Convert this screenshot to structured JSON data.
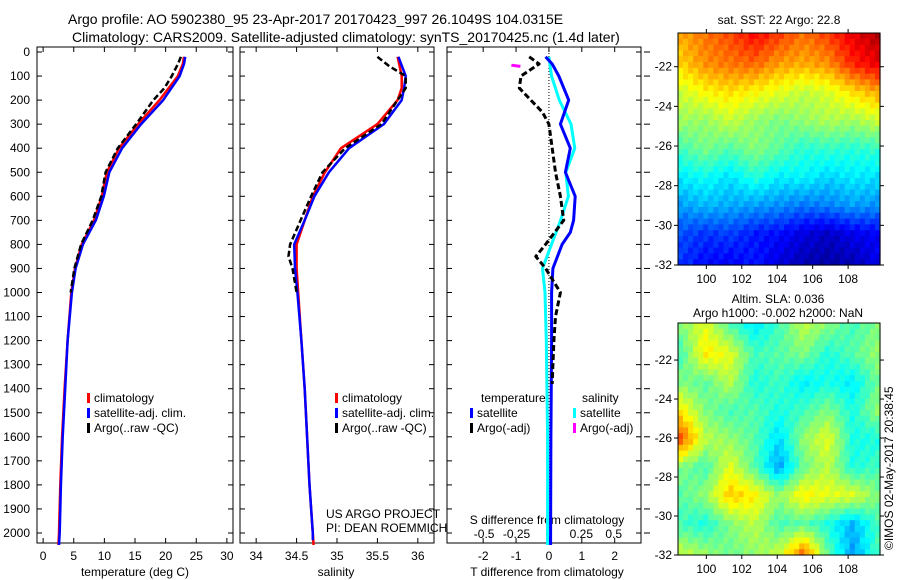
{
  "title_line1": "Argo profile: AO 5902380_95 23-Apr-2017 20170423_997 26.1049S 104.0315E",
  "title_line2": "Climatology: CARS2009. Satellite-adjusted climatology: synTS_20170425.nc (1.4d later)",
  "colors": {
    "climatology": "#ff0000",
    "satellite": "#0000ff",
    "argo": "#000000",
    "s_satellite": "#00ffff",
    "s_argo": "#ff00ff"
  },
  "chart_data": [
    {
      "type": "line",
      "xlabel": "temperature (deg C)",
      "ylabel": "",
      "xlim": [
        -1,
        31
      ],
      "ylim": [
        2050,
        0
      ],
      "xticks": [
        "0",
        "5",
        "10",
        "15",
        "20",
        "25",
        "30"
      ],
      "yticks": [
        "0",
        "100",
        "200",
        "300",
        "400",
        "500",
        "600",
        "700",
        "800",
        "900",
        "1000",
        "1100",
        "1200",
        "1300",
        "1400",
        "1500",
        "1600",
        "1700",
        "1800",
        "1900",
        "2000"
      ],
      "legend": [
        "climatology",
        "satellite-adj. clim.",
        "Argo(..raw -QC)"
      ],
      "series": [
        {
          "name": "climatology",
          "depth": [
            20,
            50,
            100,
            200,
            300,
            400,
            500,
            600,
            700,
            800,
            900,
            1000,
            1200,
            1400,
            1600,
            1800,
            2000,
            2050
          ],
          "values": [
            23,
            22.8,
            22,
            19,
            15.5,
            12.4,
            10.4,
            9.6,
            8.3,
            6.3,
            5.2,
            4.6,
            4,
            3.5,
            3.1,
            2.8,
            2.6,
            2.5
          ]
        },
        {
          "name": "satellite-adj. clim.",
          "depth": [
            20,
            50,
            100,
            200,
            300,
            400,
            500,
            600,
            700,
            800,
            900,
            1000,
            1200,
            1400,
            1600,
            1800,
            2000,
            2050
          ],
          "values": [
            23.2,
            23,
            22.3,
            19.6,
            16,
            12.9,
            10.8,
            9.9,
            8.6,
            6.5,
            5.3,
            4.7,
            4,
            3.6,
            3.2,
            2.9,
            2.7,
            2.6
          ]
        },
        {
          "name": "Argo(..raw -QC)",
          "depth": [
            20,
            50,
            100,
            150,
            200,
            300,
            400,
            500,
            600,
            700,
            800,
            900,
            1000
          ],
          "values": [
            22.5,
            22,
            21,
            19.8,
            18,
            15.2,
            12.2,
            10.2,
            9.5,
            8.1,
            6.2,
            5.1,
            4.5
          ]
        }
      ]
    },
    {
      "type": "line",
      "xlabel": "salinity",
      "xlim": [
        33.8,
        36.2
      ],
      "ylim": [
        2050,
        0
      ],
      "xticks": [
        "34",
        "34.5",
        "35",
        "35.5",
        "36"
      ],
      "legend": [
        "climatology",
        "satellite-adj. clim.",
        "Argo(..raw -QC)"
      ],
      "annotations": [
        "US ARGO PROJECT",
        "PI: DEAN ROEMMICH"
      ],
      "series": [
        {
          "name": "climatology",
          "depth": [
            20,
            100,
            150,
            200,
            300,
            400,
            500,
            600,
            700,
            800,
            900,
            1000,
            1200,
            1400,
            1600,
            1800,
            2000,
            2050
          ],
          "values": [
            35.75,
            35.8,
            35.8,
            35.75,
            35.5,
            35.05,
            34.85,
            34.7,
            34.6,
            34.5,
            34.5,
            34.52,
            34.56,
            34.6,
            34.63,
            34.66,
            34.7,
            34.71
          ]
        },
        {
          "name": "satellite-adj. clim.",
          "depth": [
            20,
            100,
            150,
            200,
            300,
            400,
            500,
            600,
            700,
            800,
            900,
            1000,
            1200,
            1400,
            1600,
            1800,
            2000,
            2030
          ],
          "values": [
            35.76,
            35.85,
            35.83,
            35.8,
            35.58,
            35.15,
            34.9,
            34.72,
            34.6,
            34.47,
            34.48,
            34.51,
            34.56,
            34.6,
            34.63,
            34.66,
            34.7,
            34.7
          ]
        },
        {
          "name": "Argo(..raw -QC)",
          "depth": [
            20,
            60,
            100,
            150,
            200,
            300,
            400,
            500,
            600,
            700,
            800,
            850,
            900,
            1000
          ],
          "values": [
            35.5,
            35.65,
            35.85,
            35.85,
            35.75,
            35.55,
            35.1,
            34.82,
            34.68,
            34.55,
            34.42,
            34.4,
            34.45,
            34.5
          ]
        }
      ]
    },
    {
      "type": "line",
      "xlabel": "T difference from climatology",
      "xlabel2": "S difference from climatology",
      "xlim": [
        -3.1,
        2.8
      ],
      "xticks": [
        "-2",
        "-1",
        "0",
        "1",
        "2"
      ],
      "xticks2": [
        "-0.5",
        "-0.25",
        "0",
        "0.25",
        "0.5"
      ],
      "legend_t_title": "temperature",
      "legend_s_title": "salinity",
      "legend": [
        "satellite",
        "Argo(-adj)",
        "satellite",
        "Argo(-adj)"
      ],
      "series": [
        {
          "name": "T satellite",
          "depth": [
            20,
            50,
            100,
            200,
            300,
            400,
            500,
            600,
            700,
            750,
            800,
            900,
            1000,
            1200,
            1600,
            2000,
            2050
          ],
          "values": [
            -0.1,
            0.1,
            0.3,
            0.6,
            0.35,
            0.65,
            0.5,
            0.8,
            0.75,
            0.65,
            0.4,
            0.12,
            0.08,
            0.08,
            0.06,
            0.05,
            0.05
          ]
        },
        {
          "name": "T Argo(-adj)",
          "depth": [
            20,
            50,
            100,
            150,
            200,
            250,
            300,
            400,
            500,
            600,
            700,
            800,
            850,
            900,
            1000,
            1100,
            1200,
            1300,
            1380
          ],
          "values": [
            -0.6,
            -0.3,
            -0.85,
            -0.9,
            -0.55,
            -0.2,
            0,
            0.1,
            0.2,
            0.35,
            0.45,
            -0.1,
            -0.4,
            -0.1,
            0.35,
            0.2,
            0.15,
            0.12,
            0.1
          ]
        },
        {
          "name": "S satellite",
          "depth": [
            20,
            100,
            200,
            300,
            400,
            500,
            600,
            700,
            800,
            900,
            1000,
            1200,
            1600,
            2000,
            2050
          ],
          "values": [
            0,
            0.02,
            0.08,
            0.17,
            0.2,
            0.13,
            0.15,
            0.09,
            0.02,
            -0.05,
            -0.03,
            -0.02,
            -0.01,
            -0.01,
            -0.01
          ]
        },
        {
          "name": "S Argo(-adj)",
          "depth": [
            55,
            60
          ],
          "values": [
            -0.29,
            -0.22
          ]
        }
      ]
    },
    {
      "type": "heatmap",
      "title": "sat. SST: 22 Argo: 22.8",
      "xlim": [
        98.4,
        109.8
      ],
      "ylim": [
        -32,
        -20.3
      ],
      "xticks": [
        "100",
        "102",
        "104",
        "106",
        "108"
      ],
      "yticks": [
        "-22",
        "-24",
        "-26",
        "-28",
        "-30",
        "-32"
      ],
      "grid_values": [
        [
          21.8,
          22.2,
          22.5,
          23,
          22.6,
          22.2,
          22.6,
          23.2,
          23.6
        ],
        [
          21.5,
          22,
          22.2,
          22.3,
          21.9,
          21.8,
          22,
          22.8,
          23.2
        ],
        [
          20.8,
          21.2,
          21.4,
          21.2,
          21,
          20.7,
          20.9,
          21.4,
          21.8
        ],
        [
          20.5,
          20.4,
          20.8,
          20.4,
          20.2,
          20.4,
          20.6,
          20.5,
          20.8
        ],
        [
          19.8,
          20.2,
          19.9,
          20.3,
          20,
          19.6,
          19.7,
          19.6,
          19.7
        ],
        [
          19.2,
          19.4,
          19.1,
          19.6,
          19.2,
          19.3,
          19,
          19.2,
          19.1
        ],
        [
          18.6,
          18.8,
          18.7,
          18.6,
          18.5,
          18.3,
          18.4,
          18.6,
          18.5
        ],
        [
          18,
          17.8,
          17.9,
          17.6,
          17.5,
          17.2,
          17,
          17.3,
          17.4
        ],
        [
          17.8,
          17.5,
          17.4,
          17.6,
          17.2,
          16.9,
          16.8,
          16.9,
          17.3
        ]
      ],
      "crange": [
        16.5,
        24
      ]
    },
    {
      "type": "heatmap",
      "title": "Altim. SLA: 0.036",
      "subtitle": "Argo h1000: -0.002 h2000: NaN",
      "xlim": [
        98.4,
        109.8
      ],
      "ylim": [
        -32,
        -20.1
      ],
      "xticks": [
        "100",
        "102",
        "104",
        "106",
        "108"
      ],
      "yticks": [
        "-22",
        "-24",
        "-26",
        "-28",
        "-30",
        "-32"
      ],
      "grid_values": [
        [
          0.05,
          0.1,
          0.03,
          -0.02,
          0.02,
          0.08,
          0.05,
          0.02,
          0.05
        ],
        [
          0.02,
          0.12,
          0.1,
          0.02,
          0.03,
          0.05,
          0,
          0.03,
          0.06
        ],
        [
          0.05,
          0.03,
          0.08,
          0,
          0.02,
          -0.02,
          0,
          -0.02,
          0.04
        ],
        [
          0.12,
          0.05,
          0.02,
          0.03,
          0,
          0.02,
          0.05,
          0,
          0.06
        ],
        [
          0.2,
          0.08,
          0.06,
          0.03,
          -0.03,
          0.06,
          0.1,
          0,
          0
        ],
        [
          0.05,
          0.02,
          0.1,
          0.03,
          -0.06,
          0.04,
          0.08,
          0,
          0.02
        ],
        [
          0.03,
          0.06,
          0.14,
          0.12,
          0.06,
          0.12,
          0.1,
          0.1,
          0.05
        ],
        [
          0.02,
          0,
          0.05,
          0.08,
          0.02,
          0.03,
          0,
          -0.05,
          0.02
        ],
        [
          0.08,
          0.06,
          0.04,
          0.06,
          0.08,
          0.18,
          0.03,
          -0.06,
          0.02
        ]
      ],
      "crange": [
        -0.2,
        0.3
      ]
    }
  ],
  "watermark": "©IMOS 02-May-2017 20:38:45"
}
